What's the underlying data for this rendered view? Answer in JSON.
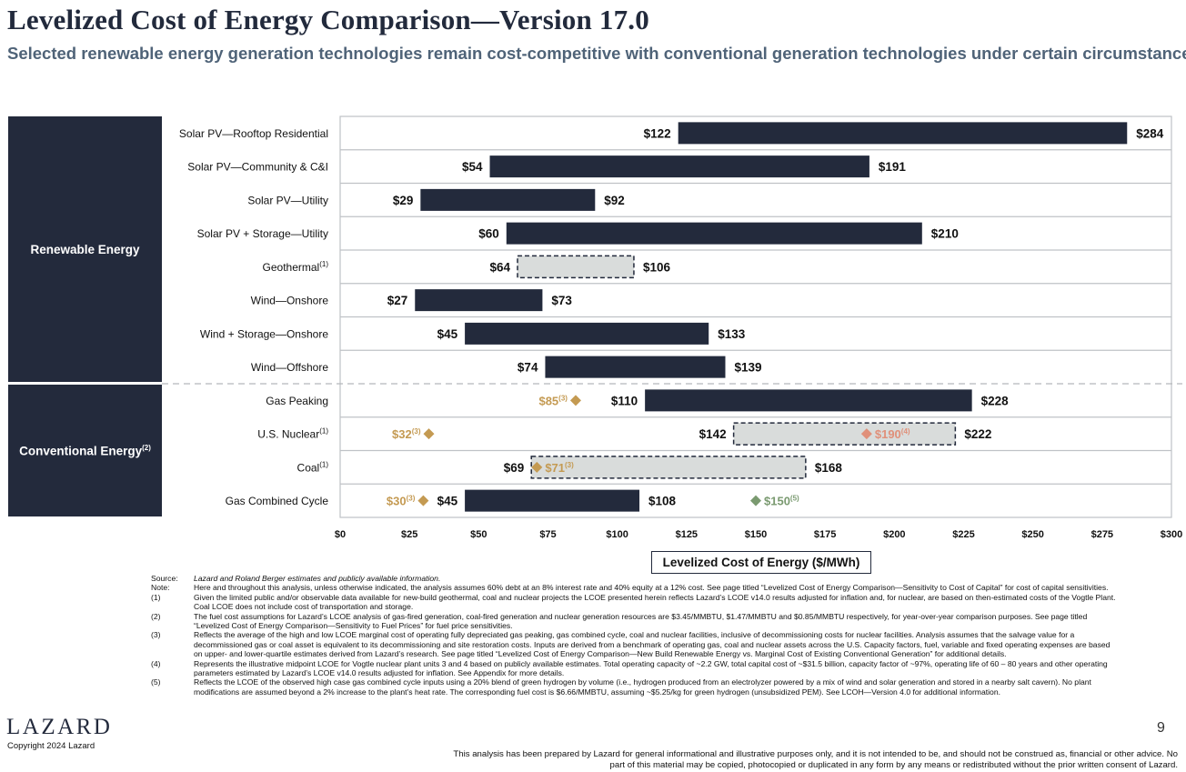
{
  "header": {
    "title": "Levelized Cost of Energy Comparison—Version 17.0",
    "subtitle": "Selected renewable energy generation technologies remain cost-competitive with conventional generation technologies under certain circumstances"
  },
  "groups": [
    {
      "label": "Renewable Energy",
      "note": ""
    },
    {
      "label": "Conventional Energy",
      "note": "(2)"
    }
  ],
  "chart_data": {
    "type": "bar",
    "subtype": "floating-range",
    "xlabel": "Levelized Cost of Energy ($/MWh)",
    "xlim": [
      0,
      300
    ],
    "xticks": [
      "$0",
      "$25",
      "$50",
      "$75",
      "$100",
      "$125",
      "$150",
      "$175",
      "$200",
      "$225",
      "$250",
      "$275",
      "$300"
    ],
    "grid": true,
    "colors": {
      "bar": "#232a3c",
      "dashed_fill": "#d9dcdb",
      "marginal": "#c49a52",
      "nuclear_midpoint": "#e0907a",
      "hydrogen": "#7a9a70"
    },
    "rows": [
      {
        "label": "Solar PV—Rooftop Residential",
        "note": "",
        "low": 122,
        "high": 284,
        "low_label": "$122",
        "high_label": "$284",
        "style": "solid"
      },
      {
        "label": "Solar PV—Community & C&I",
        "note": "",
        "low": 54,
        "high": 191,
        "low_label": "$54",
        "high_label": "$191",
        "style": "solid"
      },
      {
        "label": "Solar PV—Utility",
        "note": "",
        "low": 29,
        "high": 92,
        "low_label": "$29",
        "high_label": "$92",
        "style": "solid"
      },
      {
        "label": "Solar PV + Storage—Utility",
        "note": "",
        "low": 60,
        "high": 210,
        "low_label": "$60",
        "high_label": "$210",
        "style": "solid"
      },
      {
        "label": "Geothermal",
        "note": "(1)",
        "low": 64,
        "high": 106,
        "low_label": "$64",
        "high_label": "$106",
        "style": "dashed"
      },
      {
        "label": "Wind—Onshore",
        "note": "",
        "low": 27,
        "high": 73,
        "low_label": "$27",
        "high_label": "$73",
        "style": "solid"
      },
      {
        "label": "Wind + Storage—Onshore",
        "note": "",
        "low": 45,
        "high": 133,
        "low_label": "$45",
        "high_label": "$133",
        "style": "solid"
      },
      {
        "label": "Wind—Offshore",
        "note": "",
        "low": 74,
        "high": 139,
        "low_label": "$74",
        "high_label": "$139",
        "style": "solid"
      },
      {
        "label": "Gas Peaking",
        "note": "",
        "low": 110,
        "high": 228,
        "low_label": "$110",
        "high_label": "$228",
        "style": "solid"
      },
      {
        "label": "U.S. Nuclear",
        "note": "(1)",
        "low": 142,
        "high": 222,
        "low_label": "$142",
        "high_label": "$222",
        "style": "dashed"
      },
      {
        "label": "Coal",
        "note": "(1)",
        "low": 69,
        "high": 168,
        "low_label": "$69",
        "high_label": "$168",
        "style": "dashed"
      },
      {
        "label": "Gas Combined Cycle",
        "note": "",
        "low": 45,
        "high": 108,
        "low_label": "$45",
        "high_label": "$108",
        "style": "solid"
      }
    ],
    "markers": [
      {
        "row": 8,
        "value": 85,
        "label": "$85",
        "note": "(3)",
        "color": "#c49a52",
        "side": "left"
      },
      {
        "row": 9,
        "value": 32,
        "label": "$32",
        "note": "(3)",
        "color": "#c49a52",
        "side": "left"
      },
      {
        "row": 9,
        "value": 190,
        "label": "$190",
        "note": "(4)",
        "color": "#e0907a",
        "side": "right"
      },
      {
        "row": 10,
        "value": 71,
        "label": "$71",
        "note": "(3)",
        "color": "#c49a52",
        "side": "right"
      },
      {
        "row": 11,
        "value": 30,
        "label": "$30",
        "note": "(3)",
        "color": "#c49a52",
        "side": "left"
      },
      {
        "row": 11,
        "value": 150,
        "label": "$150",
        "note": "(5)",
        "color": "#7a9a70",
        "side": "right"
      }
    ]
  },
  "notes": [
    {
      "key": "Source:",
      "text": "Lazard and Roland Berger estimates and publicly available information."
    },
    {
      "key": "Note:",
      "text": "Here and throughout this analysis, unless otherwise indicated, the analysis assumes 60% debt at an 8% interest rate and 40% equity at a 12% cost. See page titled “Levelized Cost of Energy Comparison—Sensitivity to Cost of Capital” for cost of capital sensitivities."
    },
    {
      "key": "(1)",
      "text": "Given the limited public and/or observable data available for new-build geothermal, coal and nuclear projects the LCOE presented herein reflects Lazard’s LCOE v14.0 results adjusted for inflation and, for nuclear, are based on then-estimated costs of the Vogtle Plant. Coal LCOE does not include cost of transportation and storage."
    },
    {
      "key": "(2)",
      "text": "The fuel cost assumptions for Lazard’s LCOE analysis of gas-fired generation, coal-fired generation and nuclear generation resources are $3.45/MMBTU, $1.47/MMBTU and $0.85/MMBTU respectively, for year-over-year comparison purposes. See page titled “Levelized Cost of Energy Comparison—Sensitivity to Fuel Prices” for fuel price sensitivities."
    },
    {
      "key": "(3)",
      "text": "Reflects the average of the high and low LCOE marginal cost of operating fully depreciated gas peaking, gas combined cycle, coal and nuclear facilities, inclusive of decommissioning costs for nuclear facilities. Analysis assumes that the salvage value for a decommissioned gas or coal asset is equivalent to its decommissioning and site restoration costs. Inputs are derived from a benchmark of operating gas, coal and nuclear assets across the U.S. Capacity factors, fuel, variable and fixed operating expenses are based on upper- and lower-quartile estimates derived from Lazard’s research. See page titled “Levelized Cost of Energy Comparison—New Build Renewable Energy vs. Marginal Cost of Existing Conventional Generation” for additional details."
    },
    {
      "key": "(4)",
      "text": "Represents the illustrative midpoint LCOE for Vogtle nuclear plant units 3 and 4 based on publicly available estimates. Total operating capacity of ~2.2 GW, total capital cost of ~$31.5 billion, capacity factor of ~97%, operating life of 60 – 80 years and other operating parameters estimated by Lazard’s LCOE v14.0 results adjusted for inflation. See Appendix for more details."
    },
    {
      "key": "(5)",
      "text": "Reflects the LCOE of the observed high case gas combined cycle inputs using a 20% blend of green hydrogen by volume (i.e., hydrogen produced from an electrolyzer powered by a mix of wind and solar generation and stored in a nearby salt cavern). No plant modifications are assumed beyond a 2% increase to the plant’s heat rate. The corresponding fuel cost is $6.66/MMBTU, assuming ~$5.25/kg for green hydrogen (unsubsidized PEM). See LCOH—Version 4.0 for additional information."
    }
  ],
  "footer": {
    "logo": "LAZARD",
    "copyright": "Copyright 2024 Lazard",
    "page_number": "9",
    "disclaimer": "This analysis has been prepared by Lazard for general informational and illustrative purposes only, and it is not intended to be, and should not be construed as, financial or other advice. No part of this material may be copied, photocopied or duplicated in any form by any means or redistributed without the prior written consent of Lazard."
  }
}
